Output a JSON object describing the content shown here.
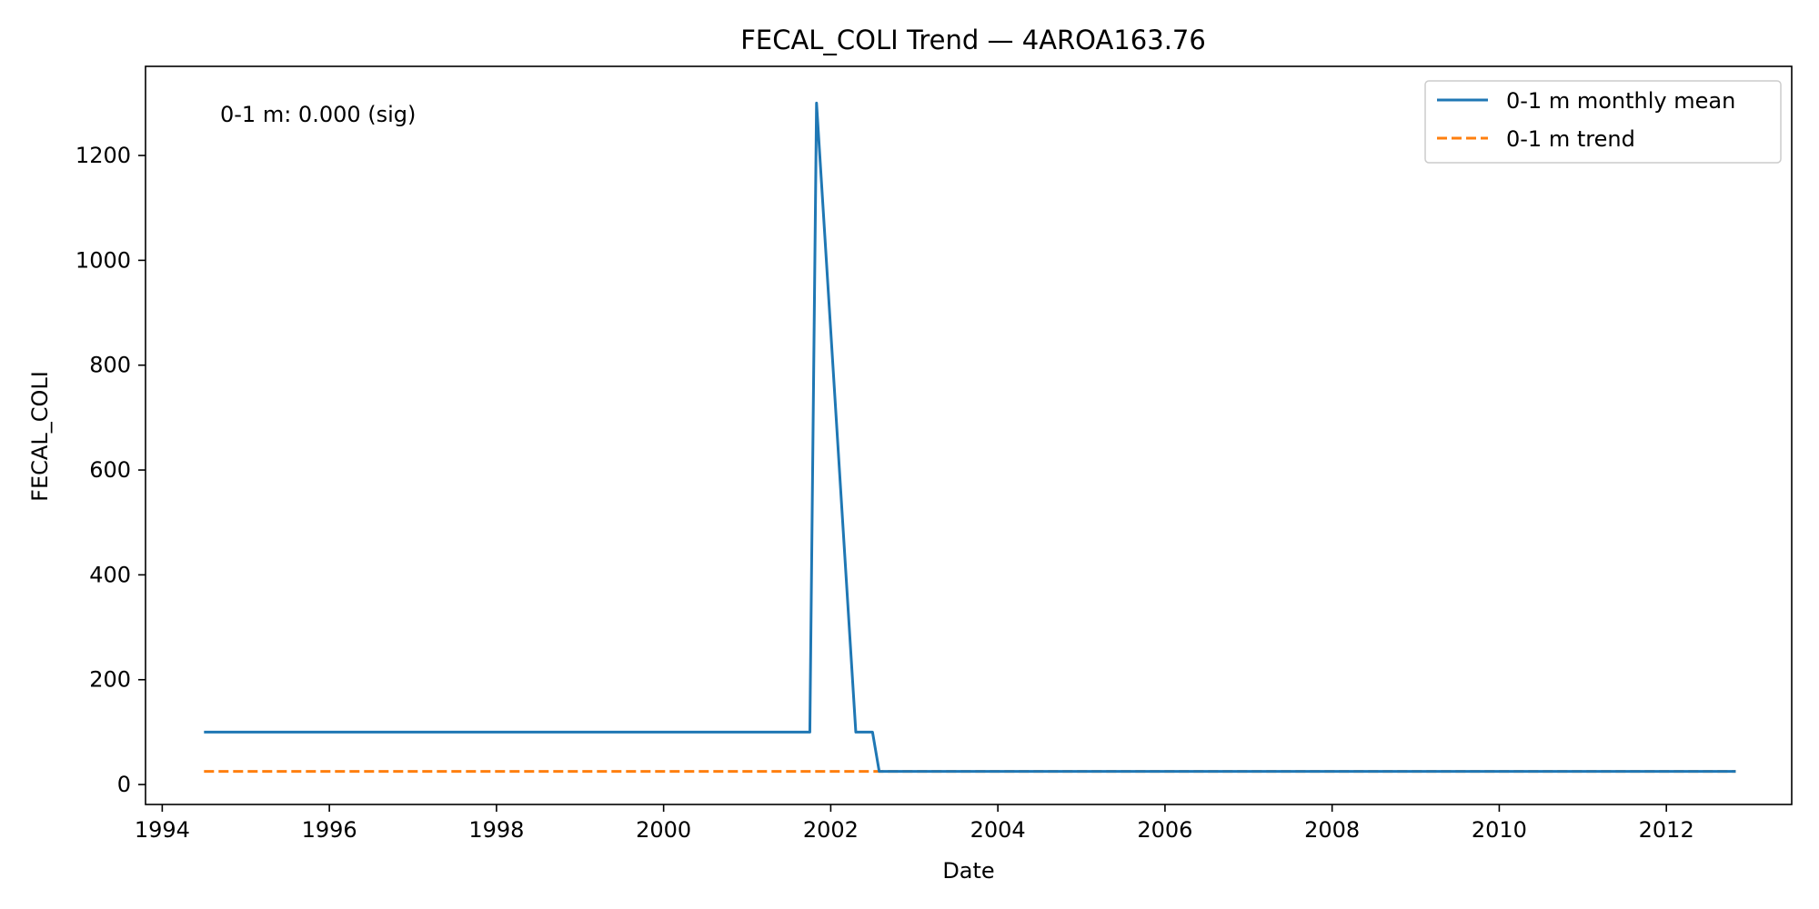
{
  "chart_data": {
    "type": "line",
    "title": "FECAL_COLI Trend — 4AROA163.76",
    "xlabel": "Date",
    "ylabel": "FECAL_COLI",
    "xlim": [
      1993.8,
      2013.5
    ],
    "ylim": [
      -38,
      1370
    ],
    "x_ticks": [
      1994,
      1996,
      1998,
      2000,
      2002,
      2004,
      2006,
      2008,
      2010,
      2012
    ],
    "y_ticks": [
      0,
      200,
      400,
      600,
      800,
      1000,
      1200
    ],
    "grid": false,
    "legend_position": "top-right",
    "annotation": "0-1 m: 0.000 (sig)",
    "colors": {
      "series_mean": "#1f77b4",
      "series_trend": "#ff7f0e"
    },
    "series": [
      {
        "name": "0-1 m monthly mean",
        "style": "solid",
        "x": [
          1994.5,
          2001.75,
          2001.83,
          2002.3,
          2002.5,
          2002.58,
          2012.83
        ],
        "y": [
          100,
          100,
          1300,
          100,
          100,
          25,
          25
        ]
      },
      {
        "name": "0-1 m trend",
        "style": "dashed",
        "x": [
          1994.5,
          2012.83
        ],
        "y": [
          25,
          25
        ]
      }
    ]
  }
}
